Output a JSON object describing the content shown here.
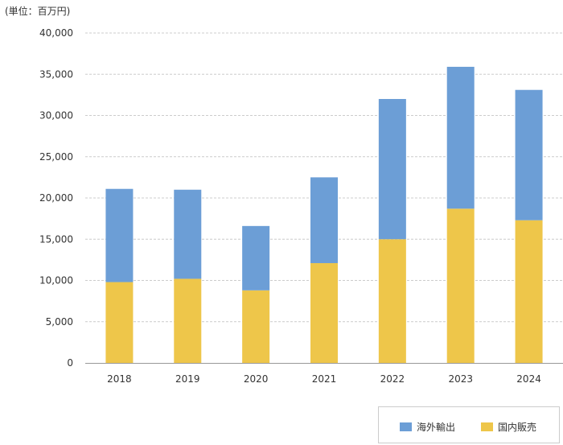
{
  "unit_label": "(単位：百万円)",
  "chart_data": {
    "type": "bar",
    "stacked": true,
    "title": "",
    "xlabel": "",
    "ylabel": "",
    "categories": [
      "2018",
      "2019",
      "2020",
      "2021",
      "2022",
      "2023",
      "2024"
    ],
    "series": [
      {
        "name": "国内販売",
        "color": "#eec64a",
        "values": [
          9800,
          10200,
          8800,
          12100,
          15000,
          18700,
          17300
        ]
      },
      {
        "name": "海外輸出",
        "color": "#6c9ed6",
        "values": [
          11300,
          10800,
          7800,
          10400,
          17000,
          17200,
          15800
        ]
      }
    ],
    "ylim": [
      0,
      40000
    ],
    "yticks": [
      0,
      5000,
      10000,
      15000,
      20000,
      25000,
      30000,
      35000,
      40000
    ],
    "ytick_labels": [
      "0",
      "5,000",
      "10,000",
      "15,000",
      "20,000",
      "25,000",
      "30,000",
      "35,000",
      "40,000"
    ],
    "grid": true,
    "legend": [
      {
        "label": "海外輸出",
        "color": "#6c9ed6"
      },
      {
        "label": "国内販売",
        "color": "#eec64a"
      }
    ],
    "legend_position": "bottom-right"
  }
}
